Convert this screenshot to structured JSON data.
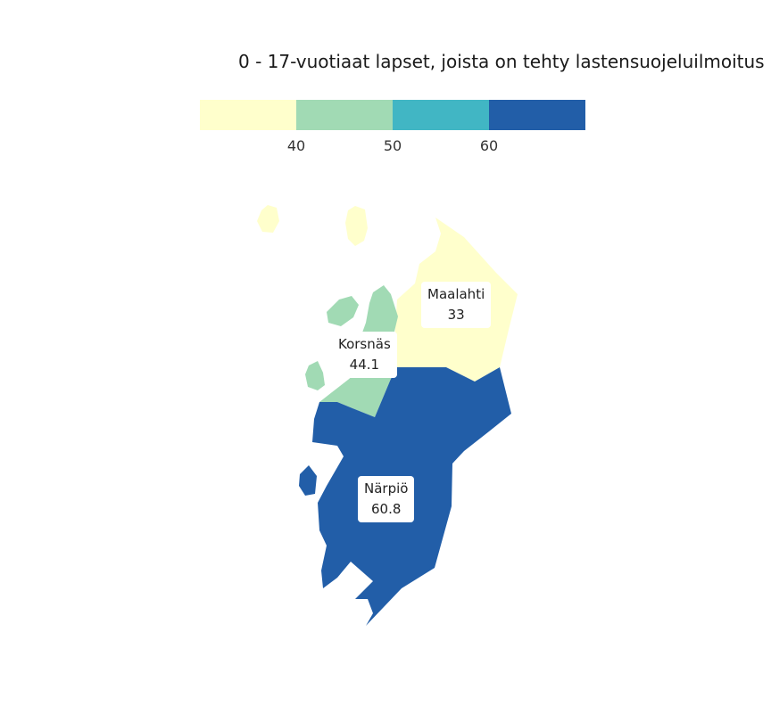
{
  "title": "0 - 17-vuotiaat lapset, joista on tehty lastensuojeluilmoitus",
  "legend": {
    "colors": [
      "#ffffcc",
      "#a1dab4",
      "#41b6c4",
      "#225ea8"
    ],
    "ticks": [
      "40",
      "50",
      "60"
    ]
  },
  "regions": [
    {
      "name": "Maalahti",
      "value": "33",
      "color": "#ffffcc"
    },
    {
      "name": "Korsnäs",
      "value": "44.1",
      "color": "#a1dab4"
    },
    {
      "name": "Närpiö",
      "value": "60.8",
      "color": "#225ea8"
    }
  ]
}
